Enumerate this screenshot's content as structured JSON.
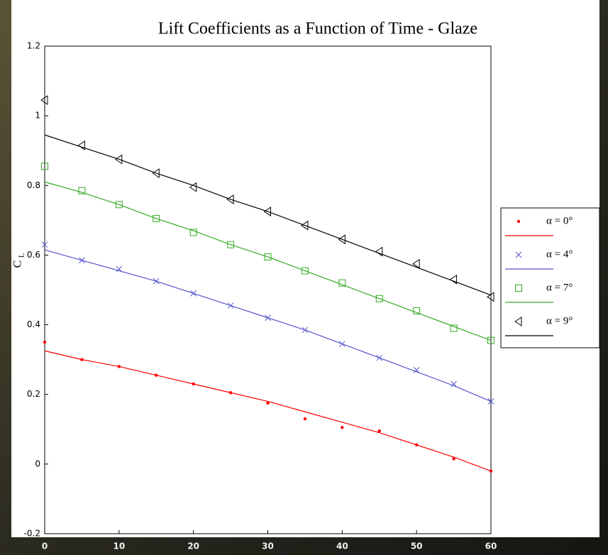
{
  "chart_data": {
    "type": "scatter",
    "title": "Lift Coefficients as a Function of Time - Glaze",
    "ylabel": {
      "main": "C",
      "sub": "L"
    },
    "x": [
      0,
      5,
      10,
      15,
      20,
      25,
      30,
      35,
      40,
      45,
      50,
      55,
      60
    ],
    "xlim": [
      0,
      60
    ],
    "xticks": [
      0,
      10,
      20,
      30,
      40,
      50,
      60
    ],
    "ylim": [
      -0.2,
      1.2
    ],
    "yticks": [
      -0.2,
      0,
      0.2,
      0.4,
      0.6,
      0.8,
      1,
      1.2
    ],
    "series": [
      {
        "name": "α = 0°",
        "color": "#ff0000",
        "marker": "dot",
        "values": [
          0.35,
          0.3,
          0.28,
          0.255,
          0.23,
          0.205,
          0.175,
          0.13,
          0.105,
          0.095,
          0.055,
          0.015,
          -0.02
        ]
      },
      {
        "name": "α = 4°",
        "color": "#5555cc",
        "marker": "x",
        "values": [
          0.63,
          0.585,
          0.56,
          0.525,
          0.49,
          0.455,
          0.42,
          0.385,
          0.345,
          0.305,
          0.27,
          0.23,
          0.18
        ]
      },
      {
        "name": "α = 7°",
        "color": "#33aa22",
        "marker": "square",
        "values": [
          0.855,
          0.785,
          0.745,
          0.705,
          0.665,
          0.63,
          0.595,
          0.555,
          0.52,
          0.475,
          0.44,
          0.39,
          0.355
        ]
      },
      {
        "name": "α = 9°",
        "color": "#000000",
        "marker": "triangle-left",
        "values": [
          1.045,
          0.915,
          0.875,
          0.835,
          0.795,
          0.76,
          0.725,
          0.685,
          0.645,
          0.61,
          0.575,
          0.53,
          0.48
        ]
      }
    ],
    "fits": [
      {
        "color": "#ff0000",
        "values": [
          0.325,
          0.3,
          0.28,
          0.255,
          0.23,
          0.205,
          0.18,
          0.15,
          0.12,
          0.09,
          0.055,
          0.02,
          -0.02
        ]
      },
      {
        "color": "#5555cc",
        "values": [
          0.615,
          0.585,
          0.555,
          0.525,
          0.49,
          0.455,
          0.42,
          0.385,
          0.345,
          0.305,
          0.265,
          0.225,
          0.18
        ]
      },
      {
        "color": "#33aa22",
        "values": [
          0.81,
          0.78,
          0.745,
          0.705,
          0.67,
          0.63,
          0.595,
          0.555,
          0.515,
          0.475,
          0.435,
          0.395,
          0.355
        ]
      },
      {
        "color": "#000000",
        "values": [
          0.945,
          0.91,
          0.875,
          0.835,
          0.8,
          0.76,
          0.725,
          0.685,
          0.645,
          0.605,
          0.565,
          0.525,
          0.485
        ]
      }
    ]
  }
}
